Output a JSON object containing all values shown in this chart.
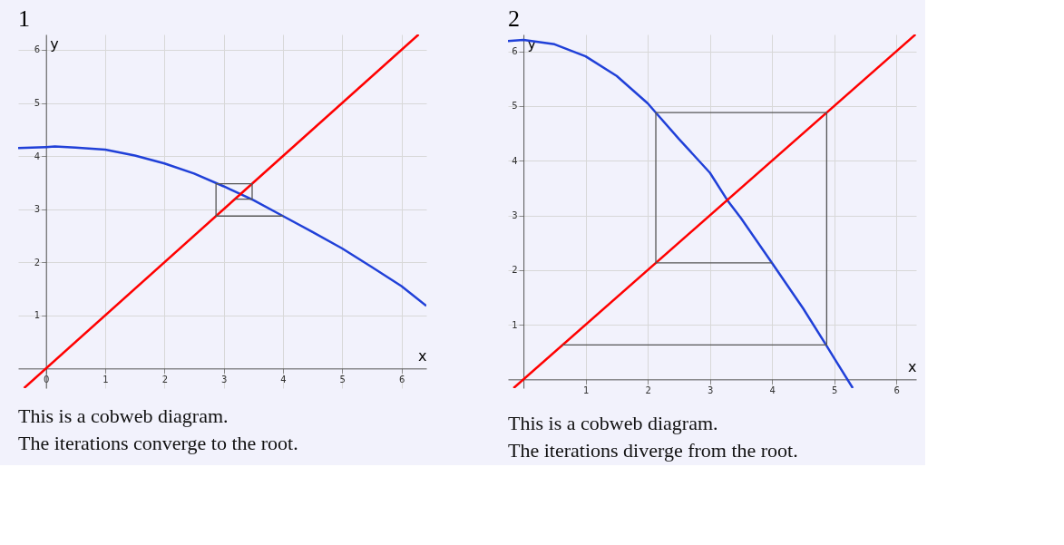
{
  "chart_data": [
    {
      "type": "line",
      "title": "1",
      "xlabel": "x",
      "ylabel": "y",
      "xlim": [
        -0.47,
        6.42
      ],
      "ylim": [
        -0.37,
        6.29
      ],
      "xticks": [
        0,
        1,
        2,
        3,
        4,
        5,
        6
      ],
      "yticks": [
        1,
        2,
        3,
        4,
        5,
        6
      ],
      "grid": true,
      "annotations": [
        "This is a cobweb diagram.",
        "The iterations converge to the root."
      ],
      "series": [
        {
          "color": "#2040d8",
          "x": [
            -0.47,
            0,
            0.15,
            0.5,
            1,
            1.5,
            2,
            2.5,
            3,
            3.5,
            4,
            4.5,
            5,
            5.5,
            6,
            6.42
          ],
          "values": [
            4.15,
            4.17,
            4.18,
            4.16,
            4.12,
            4.01,
            3.86,
            3.67,
            3.43,
            3.17,
            2.87,
            2.57,
            2.26,
            1.91,
            1.55,
            1.18
          ]
        },
        {
          "color": "#ff0000",
          "x": [
            -0.37,
            6.29
          ],
          "values": [
            -0.37,
            6.29
          ]
        },
        {
          "color": "#555555",
          "x": [
            4,
            2.87,
            2.87,
            3.48,
            3.48,
            3.19
          ],
          "values": [
            2.87,
            2.87,
            3.48,
            3.48,
            3.19,
            3.19
          ]
        }
      ]
    },
    {
      "type": "line",
      "title": "2",
      "xlabel": "x",
      "ylabel": "y",
      "xlim": [
        -0.25,
        6.32
      ],
      "ylim": [
        -0.16,
        6.31
      ],
      "xticks": [
        1,
        2,
        3,
        4,
        5,
        6
      ],
      "yticks": [
        1,
        2,
        3,
        4,
        5,
        6
      ],
      "grid": true,
      "annotations": [
        "This is a cobweb diagram.",
        "The iterations diverge from the root."
      ],
      "series": [
        {
          "color": "#2040d8",
          "x": [
            -0.25,
            0,
            0.5,
            1,
            1.5,
            2,
            2.13,
            2.5,
            3,
            3.28,
            3.5,
            4,
            4.5,
            4.87,
            5,
            5.3
          ],
          "values": [
            6.19,
            6.21,
            6.13,
            5.91,
            5.55,
            5.05,
            4.88,
            4.4,
            3.78,
            3.28,
            2.95,
            2.13,
            1.3,
            0.63,
            0.39,
            -0.16
          ]
        },
        {
          "color": "#ff0000",
          "x": [
            -0.16,
            6.31
          ],
          "values": [
            -0.16,
            6.31
          ]
        },
        {
          "color": "#555555",
          "x": [
            4,
            2.13,
            2.13,
            4.88,
            4.88,
            0.63
          ],
          "values": [
            2.13,
            2.13,
            4.88,
            4.88,
            0.63,
            0.63
          ]
        }
      ]
    }
  ]
}
